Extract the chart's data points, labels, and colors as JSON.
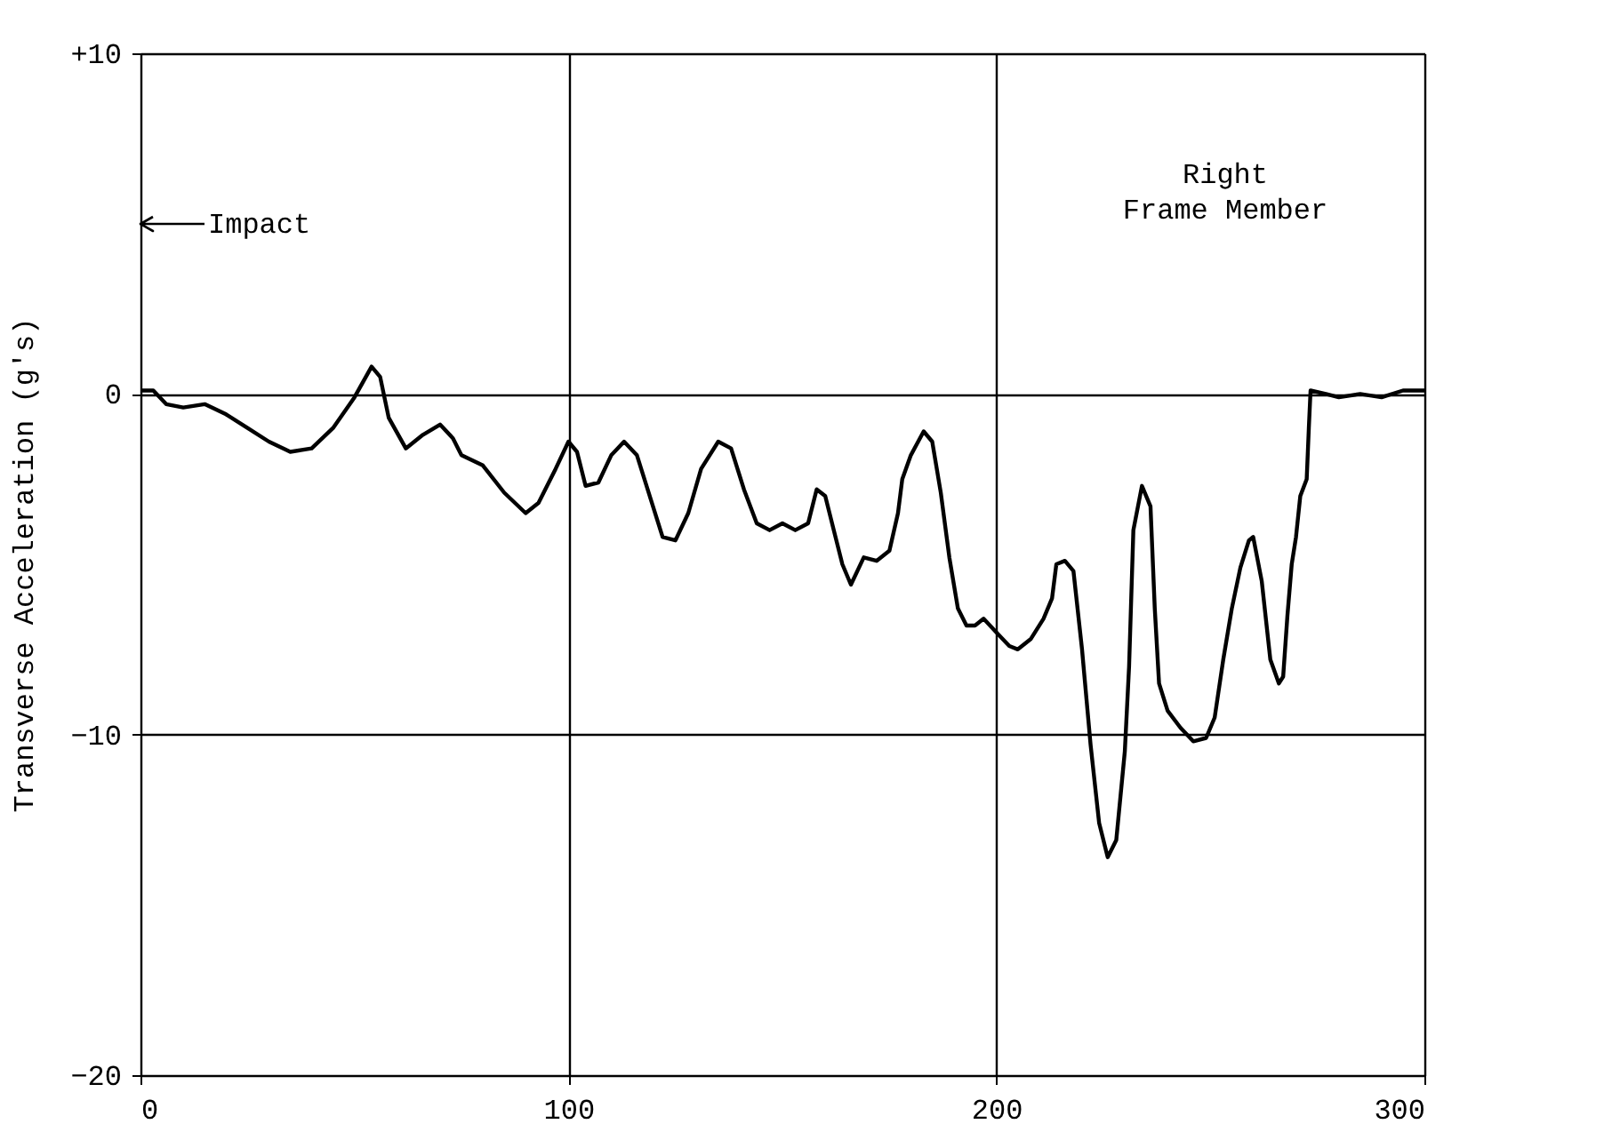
{
  "chart_data": {
    "type": "line",
    "ylabel": "Transverse Acceleration (g's)",
    "x": [
      0,
      3,
      6,
      10,
      15,
      20,
      25,
      30,
      35,
      40,
      45,
      50,
      54,
      56,
      58,
      62,
      66,
      70,
      73,
      75,
      80,
      85,
      90,
      93,
      97,
      100,
      102,
      104,
      107,
      110,
      113,
      116,
      119,
      122,
      125,
      128,
      131,
      135,
      138,
      141,
      144,
      147,
      150,
      153,
      156,
      158,
      160,
      162,
      164,
      166,
      169,
      172,
      175,
      177,
      178,
      180,
      183,
      185,
      187,
      189,
      191,
      193,
      195,
      197,
      200,
      203,
      205,
      208,
      211,
      213,
      214,
      216,
      218,
      220,
      222,
      224,
      226,
      228,
      230,
      231,
      232,
      234,
      236,
      237,
      238,
      240,
      243,
      246,
      249,
      251,
      253,
      255,
      257,
      259,
      260,
      262,
      264,
      266,
      267,
      268,
      269,
      270,
      271,
      272.5,
      273,
      273.4,
      277,
      280,
      285,
      290,
      295,
      300
    ],
    "series": [
      {
        "color": "#000000",
        "values": [
          0.1,
          0.1,
          -0.3,
          -0.4,
          -0.3,
          -0.6,
          -1.0,
          -1.4,
          -1.7,
          -1.6,
          -1.0,
          -0.1,
          0.8,
          0.5,
          -0.7,
          -1.6,
          -1.2,
          -0.9,
          -1.3,
          -1.8,
          -2.1,
          -2.9,
          -3.5,
          -3.2,
          -2.2,
          -1.4,
          -1.7,
          -2.7,
          -2.6,
          -1.8,
          -1.4,
          -1.8,
          -3.0,
          -4.2,
          -4.3,
          -3.5,
          -2.2,
          -1.4,
          -1.6,
          -2.8,
          -3.8,
          -4.0,
          -3.8,
          -4.0,
          -3.8,
          -2.8,
          -3.0,
          -4.0,
          -5.0,
          -5.6,
          -4.8,
          -4.9,
          -4.6,
          -3.5,
          -2.5,
          -1.8,
          -1.1,
          -1.4,
          -2.9,
          -4.8,
          -6.3,
          -6.8,
          -6.8,
          -6.6,
          -7.0,
          -7.4,
          -7.5,
          -7.2,
          -6.6,
          -6.0,
          -5.0,
          -4.9,
          -5.2,
          -7.5,
          -10.3,
          -12.6,
          -13.6,
          -13.1,
          -10.5,
          -8.0,
          -4.0,
          -2.7,
          -3.3,
          -6.3,
          -8.5,
          -9.3,
          -9.8,
          -10.2,
          -10.1,
          -9.5,
          -7.8,
          -6.3,
          -5.1,
          -4.3,
          -4.2,
          -5.5,
          -7.8,
          -8.5,
          -8.3,
          -6.5,
          -5.0,
          -4.2,
          -3.0,
          -2.5,
          -1.0,
          0.1,
          0.0,
          -0.1,
          0.0,
          -0.1,
          0.1,
          0.1
        ]
      }
    ],
    "xlim": [
      0,
      300
    ],
    "xticks": [
      0,
      100,
      200,
      300
    ],
    "ylim": [
      -20,
      10
    ],
    "yticks": [
      -20,
      -10,
      0,
      {
        "value": 10,
        "label": "+10"
      }
    ],
    "grid": true,
    "marker": "none",
    "line_style": "solid",
    "annotations": [
      "Impact",
      "Right\nFrame Member"
    ]
  }
}
